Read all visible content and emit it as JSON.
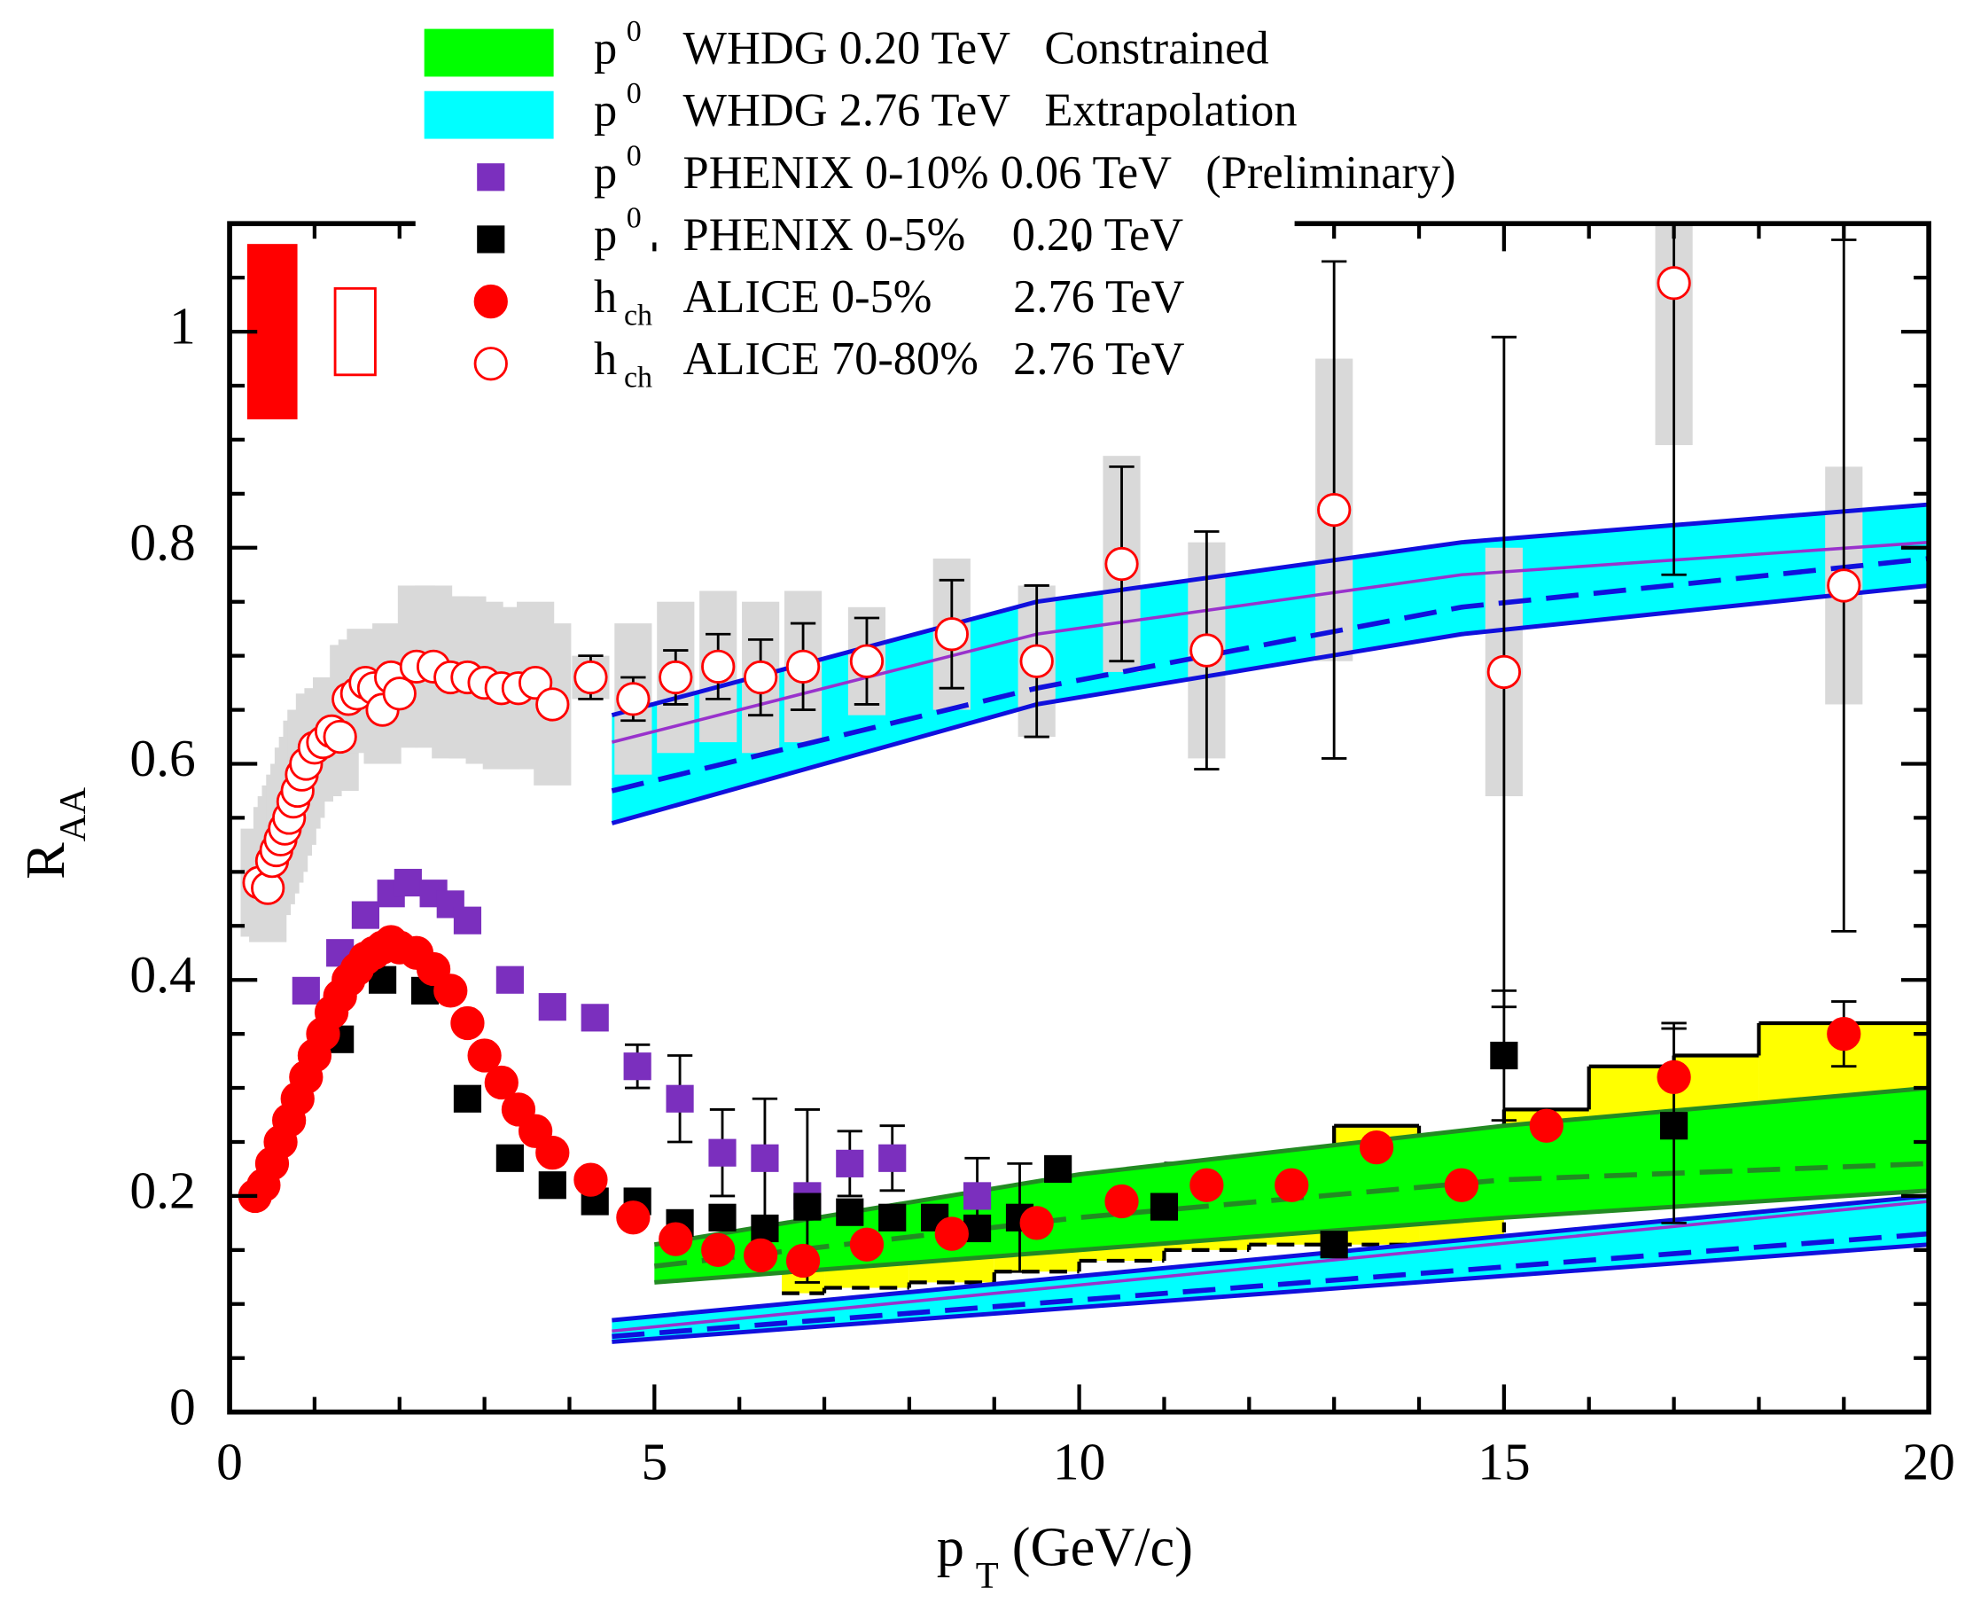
{
  "chart_data": {
    "type": "scatter",
    "xlim": [
      0,
      20
    ],
    "ylim": [
      0,
      1.1
    ],
    "xticks": [
      0,
      5,
      10,
      15,
      20
    ],
    "yticks": [
      0,
      0.2,
      0.4,
      0.6,
      0.8,
      1
    ],
    "x_minor_ticks": [
      1,
      2,
      3,
      4,
      6,
      7,
      8,
      9,
      11,
      12,
      13,
      14,
      16,
      17,
      18,
      19
    ],
    "y_minor_ticks": [
      0.05,
      0.1,
      0.15,
      0.25,
      0.3,
      0.35,
      0.45,
      0.5,
      0.55,
      0.65,
      0.7,
      0.75,
      0.85,
      0.9,
      0.95,
      1.05
    ],
    "x_label": {
      "main": "p",
      "sub": "T",
      "rest": "(GeV/c)"
    },
    "y_label": {
      "main": "R",
      "sub": "AA"
    },
    "norm_uncertainty": {
      "center": 1,
      "values": [
        0.08,
        0.04
      ],
      "color": "#ff0000"
    },
    "step_band": {
      "color": "#ffff00",
      "bins": [
        6.5,
        7,
        8,
        9,
        10,
        11,
        12,
        13,
        14,
        15,
        16,
        17,
        18,
        20
      ],
      "lower": [
        0.11,
        0.115,
        0.12,
        0.13,
        0.14,
        0.15,
        0.155,
        0.155,
        0.15,
        0.19,
        0.2,
        0.21,
        0.22
      ],
      "upper": [
        0.165,
        0.175,
        0.18,
        0.2,
        0.22,
        0.23,
        0.235,
        0.265,
        0.255,
        0.28,
        0.32,
        0.33,
        0.36
      ]
    },
    "series": [
      {
        "name": "WHDG 0.20 TeV   Constrained",
        "particle": "p",
        "sup": "0",
        "color": "#00ff00",
        "edge_color": "#228b22",
        "bands": [
          {
            "x": [
              5,
              10,
              15,
              20
            ],
            "lower": [
              0.12,
              0.15,
              0.18,
              0.205
            ],
            "upper": [
              0.155,
              0.22,
              0.265,
              0.3
            ],
            "center": [
              0.135,
              0.18,
              0.215,
              0.23
            ]
          }
        ]
      },
      {
        "name": "WHDG 2.76 TeV   Extrapolation",
        "particle": "p",
        "sup": "0",
        "color": "#00ffff",
        "edge_color": "#1010dd",
        "line_color": "#9932cc",
        "bands": [
          {
            "x": [
              4.5,
              9.5,
              14.5,
              20
            ],
            "lower": [
              0.545,
              0.655,
              0.72,
              0.765
            ],
            "upper": [
              0.645,
              0.75,
              0.805,
              0.84
            ],
            "center": [
              0.575,
              0.67,
              0.745,
              0.79
            ],
            "line": [
              0.62,
              0.72,
              0.775,
              0.805
            ]
          },
          {
            "x": [
              4.5,
              20
            ],
            "lower": [
              0.065,
              0.155
            ],
            "upper": [
              0.085,
              0.2
            ],
            "center": [
              0.07,
              0.165
            ],
            "line": [
              0.075,
              0.195
            ]
          }
        ]
      },
      {
        "name": "PHENIX 0-10% 0.06 TeV   (Preliminary)",
        "particle": "p",
        "sup": "0",
        "color": "#7b2fbe",
        "marker": "square",
        "x": [
          0.9,
          1.3,
          1.6,
          1.9,
          2.1,
          2.4,
          2.6,
          2.8,
          3.3,
          3.8,
          4.3,
          4.8,
          5.3,
          5.8,
          6.3,
          6.8,
          7.3,
          7.8,
          8.8
        ],
        "values": [
          0.39,
          0.425,
          0.46,
          0.48,
          0.49,
          0.48,
          0.47,
          0.455,
          0.4,
          0.375,
          0.365,
          0.32,
          0.29,
          0.24,
          0.235,
          0.2,
          0.23,
          0.235,
          0.2
        ],
        "errors": [
          null,
          null,
          null,
          null,
          null,
          null,
          null,
          null,
          null,
          null,
          null,
          0.02,
          0.04,
          0.04,
          0.055,
          0.08,
          0.03,
          0.03,
          0.035
        ]
      },
      {
        "name": "PHENIX 0-5%    0.20 TeV",
        "particle": "p",
        "sup": "0",
        "color": "#000000",
        "marker": "square",
        "x": [
          1.3,
          1.8,
          2.3,
          2.8,
          3.3,
          3.8,
          4.3,
          4.8,
          5.3,
          5.8,
          6.3,
          6.8,
          7.3,
          7.8,
          8.3,
          8.8,
          9.3,
          9.75,
          11,
          13,
          15,
          17
        ],
        "values": [
          0.345,
          0.4,
          0.39,
          0.29,
          0.235,
          0.21,
          0.195,
          0.195,
          0.175,
          0.18,
          0.17,
          0.19,
          0.185,
          0.18,
          0.18,
          0.17,
          0.18,
          0.225,
          0.19,
          0.155,
          0.33,
          0.265
        ],
        "errors": [
          null,
          null,
          null,
          null,
          null,
          null,
          null,
          null,
          null,
          null,
          null,
          null,
          null,
          null,
          null,
          null,
          0.05,
          null,
          null,
          null,
          0.06,
          0.09
        ]
      },
      {
        "name": "ALICE 0-5%       2.76 TeV",
        "particle": "h",
        "sub": "ch",
        "color": "#ff0000",
        "marker": "circle",
        "x": [
          0.3,
          0.4,
          0.5,
          0.6,
          0.7,
          0.8,
          0.9,
          1.0,
          1.1,
          1.2,
          1.3,
          1.4,
          1.5,
          1.6,
          1.7,
          1.8,
          1.9,
          2.0,
          2.2,
          2.4,
          2.6,
          2.8,
          3.0,
          3.2,
          3.4,
          3.6,
          3.8,
          4.25,
          4.75,
          5.25,
          5.75,
          6.25,
          6.75,
          7.5,
          8.5,
          9.5,
          10.5,
          11.5,
          12.5,
          13.5,
          14.5,
          15.5,
          17,
          19
        ],
        "values": [
          0.2,
          0.21,
          0.23,
          0.25,
          0.27,
          0.29,
          0.31,
          0.33,
          0.35,
          0.37,
          0.385,
          0.4,
          0.41,
          0.42,
          0.425,
          0.43,
          0.435,
          0.43,
          0.425,
          0.41,
          0.39,
          0.36,
          0.33,
          0.305,
          0.28,
          0.26,
          0.24,
          0.215,
          0.18,
          0.16,
          0.15,
          0.145,
          0.14,
          0.155,
          0.165,
          0.175,
          0.195,
          0.21,
          0.21,
          0.245,
          0.21,
          0.265,
          0.31,
          0.35
        ],
        "errors": [
          null,
          null,
          null,
          null,
          null,
          null,
          null,
          null,
          null,
          null,
          null,
          null,
          null,
          null,
          null,
          null,
          null,
          null,
          null,
          null,
          null,
          null,
          null,
          null,
          null,
          null,
          null,
          null,
          null,
          null,
          null,
          null,
          null,
          null,
          null,
          null,
          null,
          null,
          null,
          null,
          null,
          null,
          0.05,
          0.03
        ]
      },
      {
        "name": "ALICE 70-80%   2.76 TeV",
        "particle": "h",
        "sub": "ch",
        "color": "#ff0000",
        "marker": "open-circle",
        "sys_color": "#d9d9d9",
        "x": [
          0.35,
          0.45,
          0.5,
          0.55,
          0.6,
          0.65,
          0.7,
          0.75,
          0.8,
          0.85,
          0.9,
          1.0,
          1.1,
          1.2,
          1.3,
          1.4,
          1.5,
          1.6,
          1.7,
          1.8,
          1.9,
          2.0,
          2.2,
          2.4,
          2.6,
          2.8,
          3.0,
          3.2,
          3.4,
          3.6,
          3.8,
          4.25,
          4.75,
          5.25,
          5.75,
          6.25,
          6.75,
          7.5,
          8.5,
          9.5,
          10.5,
          11.5,
          13,
          15,
          17,
          19
        ],
        "values": [
          0.49,
          0.485,
          0.51,
          0.52,
          0.53,
          0.54,
          0.55,
          0.565,
          0.575,
          0.59,
          0.6,
          0.615,
          0.62,
          0.63,
          0.625,
          0.66,
          0.665,
          0.675,
          0.67,
          0.65,
          0.68,
          0.665,
          0.69,
          0.69,
          0.68,
          0.68,
          0.675,
          0.67,
          0.67,
          0.675,
          0.655,
          0.68,
          0.66,
          0.68,
          0.69,
          0.68,
          0.69,
          0.695,
          0.72,
          0.695,
          0.785,
          0.705,
          0.835,
          0.685,
          1.045,
          0.765
        ],
        "errors": [
          null,
          null,
          null,
          null,
          null,
          null,
          null,
          null,
          null,
          null,
          null,
          null,
          null,
          null,
          null,
          null,
          null,
          null,
          null,
          null,
          null,
          null,
          null,
          null,
          null,
          null,
          null,
          null,
          null,
          null,
          null,
          0.02,
          0.02,
          0.025,
          0.03,
          0.035,
          0.04,
          0.04,
          0.05,
          0.07,
          0.09,
          0.11,
          0.23,
          0.31,
          0.27,
          0.32
        ],
        "sys": [
          0.05,
          0.05,
          0.05,
          0.05,
          0.05,
          0.05,
          0.05,
          0.05,
          0.05,
          0.05,
          0.05,
          0.05,
          0.05,
          0.05,
          0.05,
          0.05,
          0.05,
          0.05,
          0.05,
          0.05,
          0.05,
          0.05,
          0.075,
          0.075,
          0.075,
          0.075,
          0.075,
          0.075,
          0.075,
          0.075,
          0.075,
          0.02,
          0.07,
          0.07,
          0.07,
          0.07,
          0.07,
          0.05,
          0.07,
          0.07,
          0.1,
          0.1,
          0.14,
          0.115,
          0.15,
          0.11
        ]
      }
    ]
  }
}
